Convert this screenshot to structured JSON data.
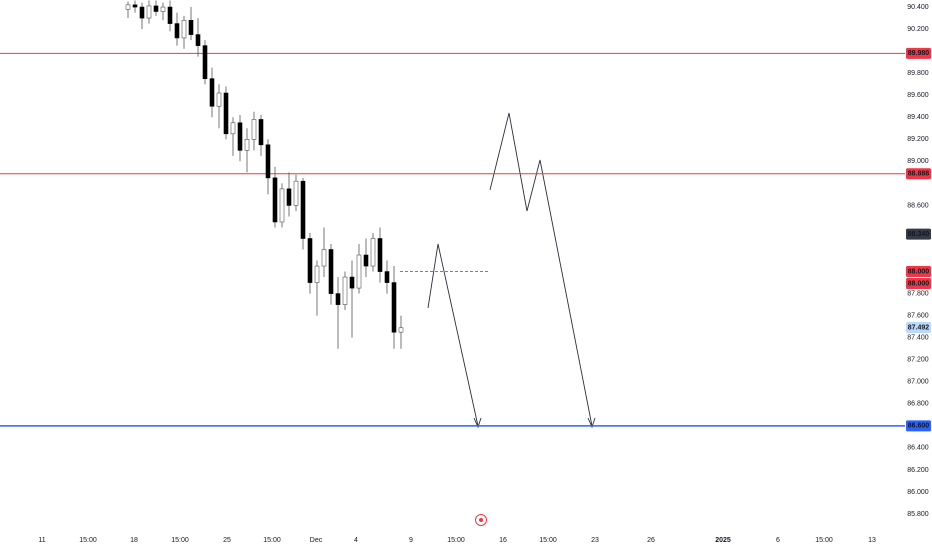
{
  "chart_data": {
    "type": "candlestick",
    "ylim": [
      85.655,
      90.464
    ],
    "yticks": [
      {
        "value": 90.4,
        "label": "90.400"
      },
      {
        "value": 90.2,
        "label": "90.200"
      },
      {
        "value": 89.8,
        "label": "89.800"
      },
      {
        "value": 89.6,
        "label": "89.600"
      },
      {
        "value": 89.4,
        "label": "89.400"
      },
      {
        "value": 89.2,
        "label": "89.200"
      },
      {
        "value": 89.0,
        "label": "89.000"
      },
      {
        "value": 88.6,
        "label": "88.600"
      },
      {
        "value": 87.8,
        "label": "87.800"
      },
      {
        "value": 87.6,
        "label": "87.600"
      },
      {
        "value": 87.4,
        "label": "87.400"
      },
      {
        "value": 87.2,
        "label": "87.200"
      },
      {
        "value": 87.0,
        "label": "87.000"
      },
      {
        "value": 86.8,
        "label": "86.800"
      },
      {
        "value": 86.4,
        "label": "86.400"
      },
      {
        "value": 86.2,
        "label": "86.200"
      },
      {
        "value": 86.0,
        "label": "86.000"
      },
      {
        "value": 85.8,
        "label": "85.800"
      }
    ],
    "x_labels": [
      "11",
      "15:00",
      "18",
      "15:00",
      "25",
      "15:00",
      "Dec",
      "4",
      "9",
      "15:00",
      "16",
      "15:00",
      "23",
      "26",
      "2025",
      "6",
      "15:00",
      "13"
    ],
    "up_color": "#ffffff",
    "down_color": "#000000",
    "open": [
      90.38,
      90.42,
      90.4,
      90.3,
      90.41,
      90.36,
      90.4,
      90.25,
      90.12,
      90.28,
      90.15,
      90.05,
      89.75,
      89.5,
      89.62,
      89.25,
      89.35,
      89.1,
      89.2,
      89.38,
      89.15,
      88.85,
      88.45,
      88.75,
      88.6,
      88.82,
      88.3,
      87.9,
      88.05,
      88.2,
      87.8,
      87.7,
      87.95,
      87.85,
      88.15,
      88.05,
      88.3,
      88.0,
      87.9,
      87.45
    ],
    "high": [
      90.45,
      90.46,
      90.44,
      90.46,
      90.46,
      90.44,
      90.46,
      90.35,
      90.32,
      90.4,
      90.3,
      90.1,
      89.85,
      89.7,
      89.68,
      89.4,
      89.42,
      89.3,
      89.45,
      89.42,
      89.2,
      88.95,
      88.8,
      88.9,
      88.88,
      88.85,
      88.35,
      88.1,
      88.4,
      88.25,
      87.95,
      88.0,
      88.1,
      88.25,
      88.3,
      88.35,
      88.4,
      88.1,
      88.05,
      87.6
    ],
    "low": [
      90.3,
      90.35,
      90.2,
      90.25,
      90.32,
      90.28,
      90.18,
      90.05,
      90.02,
      90.1,
      89.95,
      89.7,
      89.4,
      89.3,
      89.2,
      89.05,
      89.0,
      88.9,
      89.1,
      89.05,
      88.7,
      88.4,
      88.4,
      88.5,
      88.55,
      88.2,
      87.8,
      87.6,
      87.95,
      87.7,
      87.3,
      87.65,
      87.4,
      87.8,
      87.95,
      88.0,
      87.9,
      87.8,
      87.3,
      87.3
    ],
    "close": [
      90.42,
      90.4,
      90.3,
      90.41,
      90.36,
      90.4,
      90.25,
      90.12,
      90.28,
      90.15,
      90.05,
      89.75,
      89.5,
      89.62,
      89.25,
      89.35,
      89.1,
      89.2,
      89.38,
      89.15,
      88.85,
      88.45,
      88.75,
      88.6,
      88.82,
      88.3,
      87.9,
      88.05,
      88.2,
      87.8,
      87.7,
      87.95,
      87.85,
      88.15,
      88.05,
      88.3,
      88.0,
      87.9,
      87.45,
      87.49
    ],
    "levels": [
      {
        "value": 89.98,
        "label": "89.980",
        "color": "#f23645"
      },
      {
        "value": 88.888,
        "label": "88.888",
        "color": "#f23645"
      },
      {
        "value": 86.6,
        "label": "86.600",
        "color": "#2962ff"
      }
    ],
    "badges": [
      {
        "value": 88.34,
        "label": "88.340",
        "color": "#363a45",
        "text_color": "#ffffff"
      },
      {
        "value": 88.0,
        "label": "88.000",
        "color": "#f23645",
        "text_color": "#ffffff"
      },
      {
        "value": 88.0,
        "label": "88.000",
        "color": "#f23645",
        "text_color": "#ffffff"
      },
      {
        "value": 87.492,
        "label": "87.492",
        "color": "#bbd9fb",
        "text_color": "#131722"
      }
    ],
    "dashed_level": {
      "value": 88.0,
      "color": "#f23645"
    }
  }
}
